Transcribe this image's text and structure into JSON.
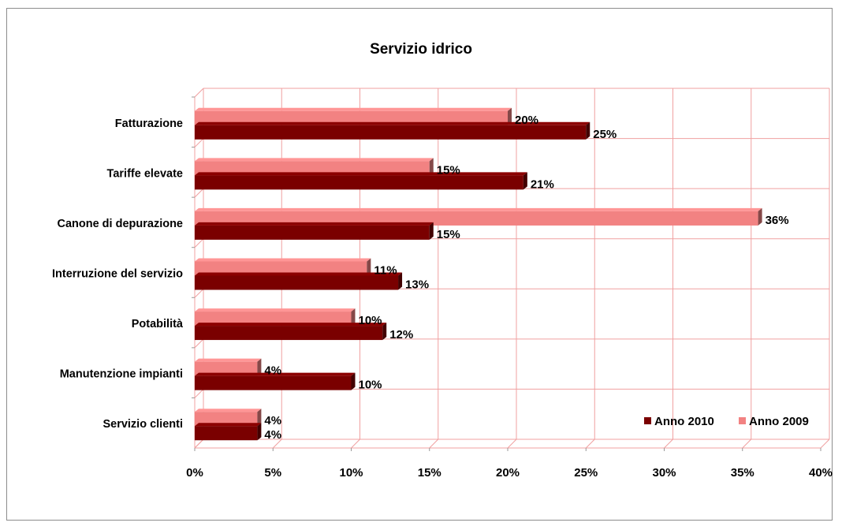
{
  "chart_data": {
    "type": "bar",
    "orientation": "horizontal",
    "title": "Servizio idrico",
    "xlabel": "",
    "ylabel": "",
    "categories": [
      "Fatturazione",
      "Tariffe elevate",
      "Canone di depurazione",
      "Interruzione del servizio",
      "Potabilità",
      "Manutenzione impianti",
      "Servizio clienti"
    ],
    "series": [
      {
        "name": "Anno 2010",
        "color": "#7a0000",
        "values": [
          25,
          21,
          15,
          13,
          12,
          10,
          4
        ],
        "labels": [
          "25%",
          "21%",
          "15%",
          "13%",
          "12%",
          "10%",
          "4%"
        ]
      },
      {
        "name": "Anno 2009",
        "color": "#f28282",
        "values": [
          20,
          15,
          36,
          11,
          10,
          4,
          4
        ],
        "labels": [
          "20%",
          "15%",
          "36%",
          "11%",
          "10%",
          "4%",
          "4%"
        ]
      }
    ],
    "xlim": [
      0,
      40
    ],
    "xticks": [
      0,
      5,
      10,
      15,
      20,
      25,
      30,
      35,
      40
    ],
    "xtick_labels": [
      "0%",
      "5%",
      "10%",
      "15%",
      "20%",
      "25%",
      "30%",
      "35%",
      "40%"
    ],
    "grid": true,
    "legend_position": "bottom-right",
    "gridline_color": "#f0a0a0"
  }
}
